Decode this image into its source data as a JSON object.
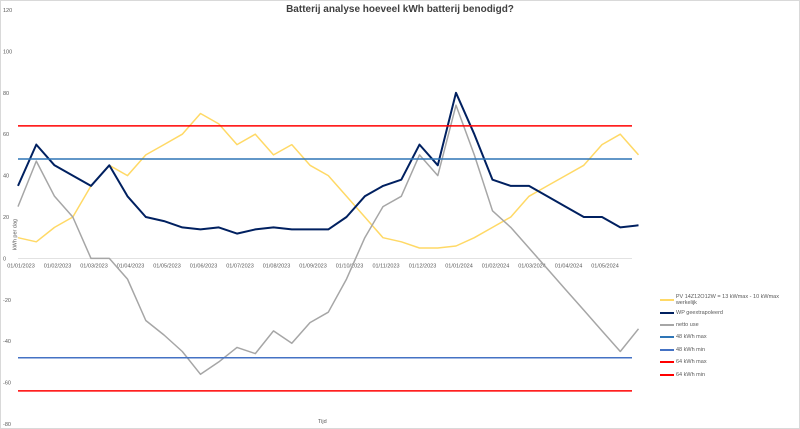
{
  "chart_data": {
    "type": "line",
    "title": "Batterij analyse hoeveel kWh batterij benodigd?",
    "xlabel": "Tijd",
    "ylabel": "kWh per dag",
    "ylim": [
      -80,
      120
    ],
    "yticks": [
      "-80",
      "-60",
      "-40",
      "-20",
      "0",
      "20",
      "40",
      "60",
      "80",
      "100",
      "120"
    ],
    "x_tick_labels": [
      "01/01/2023",
      "01/02/2023",
      "01/03/2023",
      "01/04/2023",
      "01/05/2023",
      "01/06/2023",
      "01/07/2023",
      "01/08/2023",
      "01/09/2023",
      "01/10/2023",
      "01/11/2023",
      "01/12/2023",
      "01/01/2024",
      "01/02/2024",
      "01/03/2024",
      "01/04/2024",
      "01/05/2024"
    ],
    "x": [
      0,
      0.5,
      1,
      1.5,
      2,
      2.5,
      3,
      3.5,
      4,
      4.5,
      5,
      5.5,
      6,
      6.5,
      7,
      7.5,
      8,
      8.5,
      9,
      9.5,
      10,
      10.5,
      11,
      11.5,
      12,
      12.5,
      13,
      13.5,
      14,
      14.5,
      15,
      15.5,
      16,
      16.5,
      17
    ],
    "legend_position": "right",
    "series": [
      {
        "name": "PV 14Z12O12W = 13 kWmax - 10 kWmax werkelijk",
        "color": "#ffd966",
        "values": [
          10,
          8,
          15,
          20,
          35,
          45,
          40,
          50,
          55,
          60,
          70,
          65,
          55,
          60,
          50,
          55,
          45,
          40,
          30,
          20,
          10,
          8,
          5,
          5,
          6,
          10,
          15,
          20,
          30,
          35,
          40,
          45,
          55,
          60,
          50
        ]
      },
      {
        "name": "WP geextrapoleerd",
        "color": "#002060",
        "values": [
          35,
          55,
          45,
          40,
          35,
          45,
          30,
          20,
          18,
          15,
          14,
          15,
          12,
          14,
          15,
          14,
          14,
          14,
          20,
          30,
          35,
          38,
          55,
          45,
          80,
          60,
          38,
          35,
          35,
          30,
          25,
          20,
          20,
          15,
          16
        ]
      },
      {
        "name": "netto use",
        "color": "#a6a6a6",
        "values": [
          25,
          47,
          30,
          20,
          0,
          0,
          -10,
          -30,
          -37,
          -45,
          -56,
          -50,
          -43,
          -46,
          -35,
          -41,
          -31,
          -26,
          -10,
          10,
          25,
          30,
          50,
          40,
          74,
          50,
          23,
          15,
          5,
          -5,
          -15,
          -25,
          -35,
          -45,
          -34
        ]
      },
      {
        "name": "48 kWh max",
        "color": "#2e75b6",
        "constant": 48
      },
      {
        "name": "48 kWh min",
        "color": "#4472c4",
        "constant": -48
      },
      {
        "name": "64 kWh max",
        "color": "#ff0000",
        "constant": 64
      },
      {
        "name": "64 kWh min",
        "color": "#ff0000",
        "constant": -64
      }
    ]
  }
}
